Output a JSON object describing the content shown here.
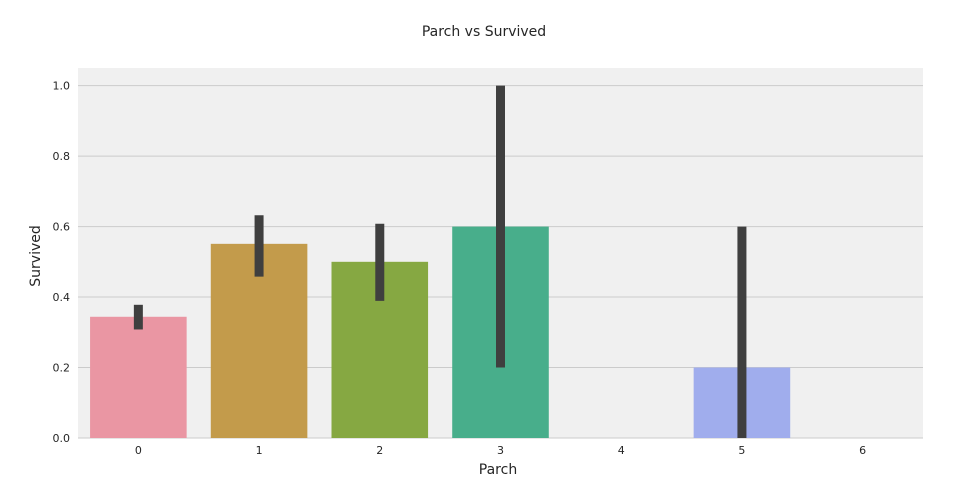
{
  "chart_data": {
    "type": "bar",
    "title": "Parch vs Survived",
    "xlabel": "Parch",
    "ylabel": "Survived",
    "categories": [
      "0",
      "1",
      "2",
      "3",
      "4",
      "5",
      "6"
    ],
    "values": [
      0.344,
      0.551,
      0.5,
      0.6,
      0.0,
      0.2,
      0.0
    ],
    "error_low": [
      0.308,
      0.458,
      0.389,
      0.2,
      null,
      0.0,
      null
    ],
    "error_high": [
      0.378,
      0.632,
      0.608,
      1.0,
      null,
      0.6,
      null
    ],
    "colors": [
      "#ea96a3",
      "#c39b4b",
      "#86a842",
      "#48ae8b",
      "#4fa9c7",
      "#a0aded",
      "#e08fd6"
    ],
    "error_color": "#3f3f3f",
    "ylim": [
      0,
      1.05
    ],
    "yticks": [
      "0.0",
      "0.2",
      "0.4",
      "0.6",
      "0.8",
      "1.0"
    ],
    "grid": true,
    "legend": "none",
    "background": "#f0f0f0",
    "gridline_color": "#cbcbcb"
  }
}
